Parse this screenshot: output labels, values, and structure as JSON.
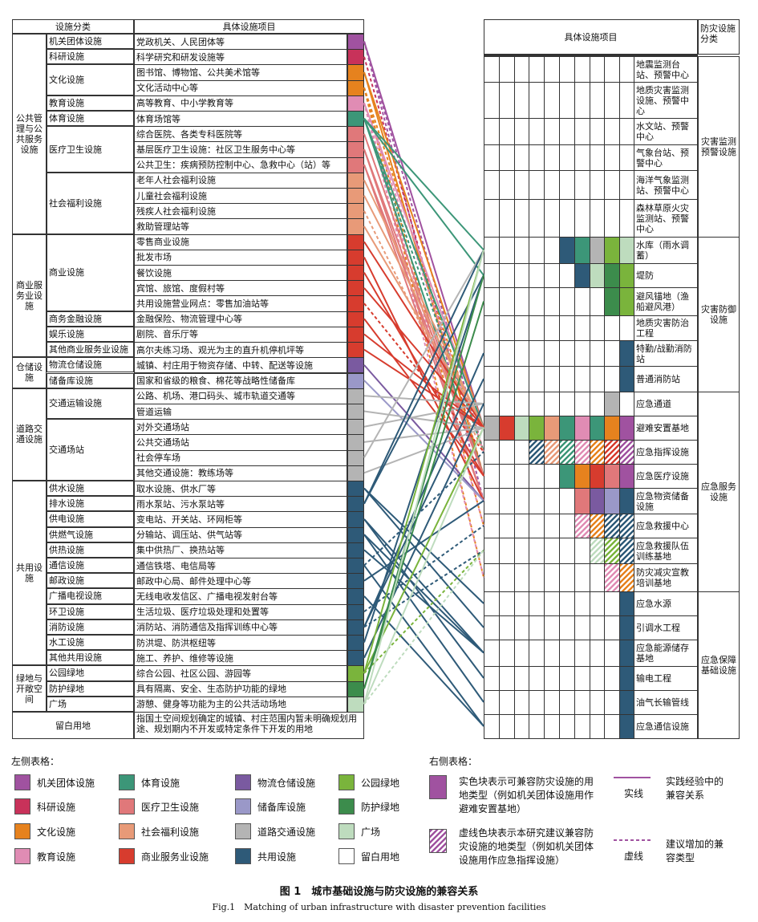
{
  "colors": {
    "jiguan": "#A052A0",
    "keyan": "#C8325A",
    "wenhua": "#E6821E",
    "jiaoyu": "#E08CB4",
    "tiyu": "#3C9678",
    "yiliao": "#E0787A",
    "fuli": "#E89A78",
    "shangye": "#D73C2E",
    "wuliu": "#7A5AA0",
    "chubei": "#9A98C8",
    "jiaotong": "#B4B4B4",
    "gongyong": "#2E5A78",
    "gongyuan": "#7AB43C",
    "fanghu": "#3C8C4C",
    "guangchang": "#BEDCBE",
    "liubai": "#FFFFFF"
  },
  "left_table": {
    "header_category": "设施分类",
    "header_items": "具体设施项目",
    "major_categories": [
      {
        "label": "公共管理与公共服务设施"
      },
      {
        "label": "商业服务业设施"
      },
      {
        "label": "仓储设施"
      },
      {
        "label": "道路交通设施"
      },
      {
        "label": "共用设施"
      },
      {
        "label": "绿地与开敞空间"
      }
    ],
    "sub_categories": [
      {
        "label": "机关团体设施"
      },
      {
        "label": "科研设施"
      },
      {
        "label": "文化设施"
      },
      {
        "label": "教育设施"
      },
      {
        "label": "体育设施"
      },
      {
        "label": "医疗卫生设施"
      },
      {
        "label": "社会福利设施"
      },
      {
        "label": "商业设施"
      },
      {
        "label": "商务金融设施"
      },
      {
        "label": "娱乐设施"
      },
      {
        "label": "其他商业服务业设施"
      },
      {
        "label": "物流仓储设施"
      },
      {
        "label": "储备库设施"
      },
      {
        "label": "交通运输设施"
      },
      {
        "label": "交通场站"
      },
      {
        "label": "供水设施"
      },
      {
        "label": "排水设施"
      },
      {
        "label": "供电设施"
      },
      {
        "label": "供燃气设施"
      },
      {
        "label": "供热设施"
      },
      {
        "label": "通信设施"
      },
      {
        "label": "邮政设施"
      },
      {
        "label": "广播电视设施"
      },
      {
        "label": "环卫设施"
      },
      {
        "label": "消防设施"
      },
      {
        "label": "水工设施"
      },
      {
        "label": "其他共用设施"
      },
      {
        "label": "公园绿地"
      },
      {
        "label": "防护绿地"
      },
      {
        "label": "广场"
      }
    ],
    "reserved_label": "留白用地",
    "reserved_text": "指国土空间规划确定的城镇、村庄范围内暂未明确规划用途、规划期内不开发或特定条件下开发的用地",
    "rows": [
      {
        "text": "党政机关、人民团体等"
      },
      {
        "text": "科学研究和研发设施等"
      },
      {
        "text": "图书馆、博物馆、公共美术馆等"
      },
      {
        "text": "文化活动中心等"
      },
      {
        "text": "高等教育、中小学教育等"
      },
      {
        "text": "体育场馆等"
      },
      {
        "text": "综合医院、各类专科医院等"
      },
      {
        "text": "基层医疗卫生设施：社区卫生服务中心等"
      },
      {
        "text": "公共卫生：疾病预防控制中心、急救中心（站）等"
      },
      {
        "text": "老年人社会福利设施"
      },
      {
        "text": "儿童社会福利设施"
      },
      {
        "text": "残疾人社会福利设施"
      },
      {
        "text": "救助管理站等"
      },
      {
        "text": "零售商业设施"
      },
      {
        "text": "批发市场"
      },
      {
        "text": "餐饮设施"
      },
      {
        "text": "宾馆、旅馆、度假村等"
      },
      {
        "text": "共用设施营业网点：零售加油站等"
      },
      {
        "text": "金融保险、物流管理中心等"
      },
      {
        "text": "剧院、音乐厅等"
      },
      {
        "text": "高尔夫练习场、观光为主的直升机停机坪等"
      },
      {
        "text": "城镇、村庄用于物资存储、中转、配送等设施"
      },
      {
        "text": "国家和省级的粮食、棉花等战略性储备库"
      },
      {
        "text": "公路、机场、港口码头、城市轨道交通等"
      },
      {
        "text": "管道运输"
      },
      {
        "text": "对外交通场站"
      },
      {
        "text": "公共交通场站"
      },
      {
        "text": "社会停车场"
      },
      {
        "text": "其他交通设施：教练场等"
      },
      {
        "text": "取水设施、供水厂等"
      },
      {
        "text": "雨水泵站、污水泵站等"
      },
      {
        "text": "变电站、开关站、环网柜等"
      },
      {
        "text": "分输站、调压站、供气站等"
      },
      {
        "text": "集中供热厂、换热站等"
      },
      {
        "text": "通信铁塔、电信局等"
      },
      {
        "text": "邮政中心局、邮件处理中心等"
      },
      {
        "text": "无线电收发信区、广播电视发射台等"
      },
      {
        "text": "生活垃圾、医疗垃圾处理和处置等"
      },
      {
        "text": "消防站、消防通信及指挥训练中心等"
      },
      {
        "text": "防洪堤、防洪枢纽等"
      },
      {
        "text": "施工、养护、维修等设施"
      },
      {
        "text": "综合公园、社区公园、游园等"
      },
      {
        "text": "具有隔离、安全、生态防护功能的绿地"
      },
      {
        "text": "游憩、健身等功能为主的公共活动场地"
      }
    ]
  },
  "right_table": {
    "header_items": "具体设施项目",
    "header_category": "防灾设施分类",
    "categories": [
      {
        "label": "灾害监测预警设施"
      },
      {
        "label": "灾害防御设施"
      },
      {
        "label": "应急服务设施"
      },
      {
        "label": "应急保障基础设施"
      }
    ],
    "rows": [
      {
        "text": "地震监测台站、预警中心"
      },
      {
        "text": "地质灾害监测设施、预警中心"
      },
      {
        "text": "水文站、预警中心"
      },
      {
        "text": "气象台站、预警中心"
      },
      {
        "text": "海洋气象监测站、预警中心"
      },
      {
        "text": "森林草原火灾监测站、预警中心"
      },
      {
        "text": "水库（雨水调蓄）"
      },
      {
        "text": "堤防"
      },
      {
        "text": "避风锚地（渔船避风港）"
      },
      {
        "text": "地质灾害防治工程"
      },
      {
        "text": "特勤/战勤消防站"
      },
      {
        "text": "普通消防站"
      },
      {
        "text": "应急通道"
      },
      {
        "text": "避难安置基地"
      },
      {
        "text": "应急指挥设施"
      },
      {
        "text": "应急医疗设施"
      },
      {
        "text": "应急物资储备设施"
      },
      {
        "text": "应急救援中心"
      },
      {
        "text": "应急救援队伍训练基地"
      },
      {
        "text": "防灾减灾宣教培训基地"
      },
      {
        "text": "应急水源"
      },
      {
        "text": "引调水工程"
      },
      {
        "text": "应急能源储存基地"
      },
      {
        "text": "输电工程"
      },
      {
        "text": "油气长输管线"
      },
      {
        "text": "应急通信设施"
      }
    ]
  },
  "legend": {
    "left_title": "左侧表格：",
    "right_title": "右侧表格：",
    "items": [
      {
        "label": "机关团体设施",
        "color": "#A052A0"
      },
      {
        "label": "体育设施",
        "color": "#3C9678"
      },
      {
        "label": "物流仓储设施",
        "color": "#7A5AA0"
      },
      {
        "label": "公园绿地",
        "color": "#7AB43C"
      },
      {
        "label": "科研设施",
        "color": "#C8325A"
      },
      {
        "label": "医疗卫生设施",
        "color": "#E0787A"
      },
      {
        "label": "储备库设施",
        "color": "#9A98C8"
      },
      {
        "label": "防护绿地",
        "color": "#3C8C4C"
      },
      {
        "label": "文化设施",
        "color": "#E6821E"
      },
      {
        "label": "社会福利设施",
        "color": "#E89A78"
      },
      {
        "label": "道路交通设施",
        "color": "#B4B4B4"
      },
      {
        "label": "广场",
        "color": "#BEDCBE"
      },
      {
        "label": "教育设施",
        "color": "#E08CB4"
      },
      {
        "label": "商业服务业设施",
        "color": "#D73C2E"
      },
      {
        "label": "共用设施",
        "color": "#2E5A78"
      },
      {
        "label": "留白用地",
        "color": "#FFFFFF"
      }
    ],
    "solid_block_text": "实色块表示可兼容防灾设施的用地类型（例如机关团体设施用作避难安置基地）",
    "hatched_block_text": "虚线色块表示本研究建议兼容防灾设施的地类型（例如机关团体设施用作应急指挥设施）",
    "solid_line_label": "实线",
    "solid_line_text": "实践经验中的兼容关系",
    "dashed_line_label": "虚线",
    "dashed_line_text": "建议增加的兼容类型"
  },
  "caption": {
    "cn": "图 1　城市基础设施与防灾设施的兼容关系",
    "en": "Fig.1　Matching of urban infrastructure with disaster prevention facilities"
  }
}
